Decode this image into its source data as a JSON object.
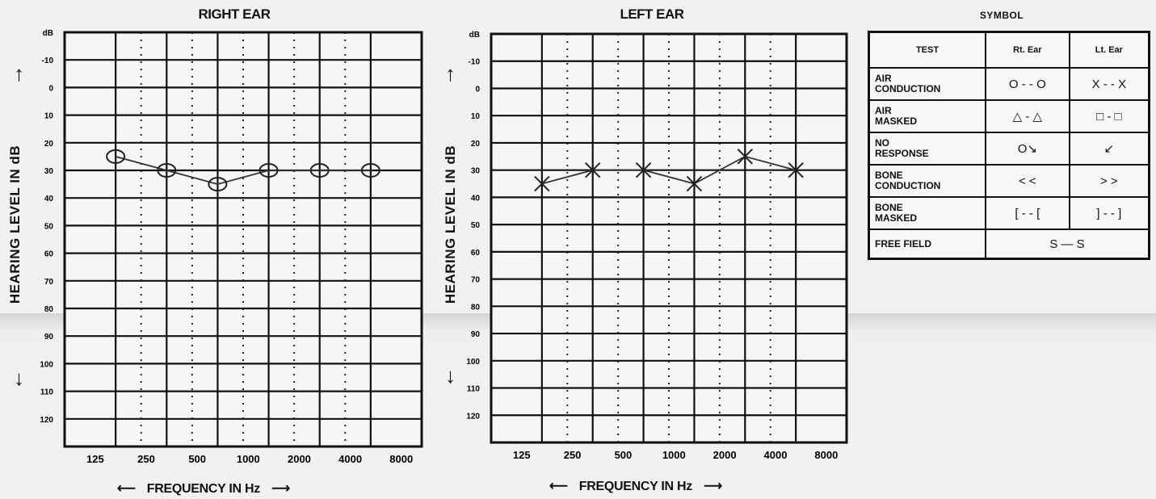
{
  "chart_data": [
    {
      "type": "line",
      "title": "RIGHT EAR",
      "xlabel": "FREQUENCY IN Hz",
      "ylabel": "HEARING LEVEL IN dB",
      "x_ticks": [
        "125",
        "250",
        "500",
        "1000",
        "2000",
        "4000",
        "8000"
      ],
      "y_ticks": [
        "dB",
        "-10",
        "0",
        "10",
        "20",
        "30",
        "40",
        "50",
        "60",
        "70",
        "80",
        "90",
        "100",
        "110",
        "120"
      ],
      "ylim": [
        -10,
        120
      ],
      "y_inverted": true,
      "grid": true,
      "series": [
        {
          "symbol": "O",
          "x": [
            250,
            500,
            1000,
            2000,
            4000,
            8000
          ],
          "values": [
            25,
            30,
            35,
            30,
            30,
            30
          ]
        }
      ]
    },
    {
      "type": "line",
      "title": "LEFT EAR",
      "xlabel": "FREQUENCY IN Hz",
      "ylabel": "HEARING LEVEL IN dB",
      "x_ticks": [
        "125",
        "250",
        "500",
        "1000",
        "2000",
        "4000",
        "8000"
      ],
      "y_ticks": [
        "dB",
        "-10",
        "0",
        "10",
        "20",
        "30",
        "40",
        "50",
        "60",
        "70",
        "80",
        "90",
        "100",
        "110",
        "120"
      ],
      "ylim": [
        -10,
        120
      ],
      "y_inverted": true,
      "grid": true,
      "series": [
        {
          "symbol": "X",
          "x": [
            250,
            500,
            1000,
            2000,
            4000,
            8000
          ],
          "values": [
            35,
            30,
            30,
            35,
            25,
            30
          ]
        }
      ]
    }
  ],
  "legend": {
    "title": "SYMBOL",
    "headers": [
      "TEST",
      "Rt. Ear",
      "Lt. Ear"
    ],
    "rows": [
      {
        "test": [
          "AIR",
          "CONDUCTION"
        ],
        "right": "O - - O",
        "left": "X - - X"
      },
      {
        "test": [
          "AIR",
          "MASKED"
        ],
        "right": "△ - △",
        "left": "□ - □"
      },
      {
        "test": [
          "NO",
          "RESPONSE"
        ],
        "right": "O↘",
        "left": "↙"
      },
      {
        "test": [
          "BONE",
          "CONDUCTION"
        ],
        "right": "< <",
        "left": "> >"
      },
      {
        "test": [
          "BONE",
          "MASKED"
        ],
        "right": "[ - - [",
        "left": "] - - ]"
      }
    ],
    "free_field": {
      "test": "FREE FIELD",
      "symbol": "S — S"
    }
  }
}
